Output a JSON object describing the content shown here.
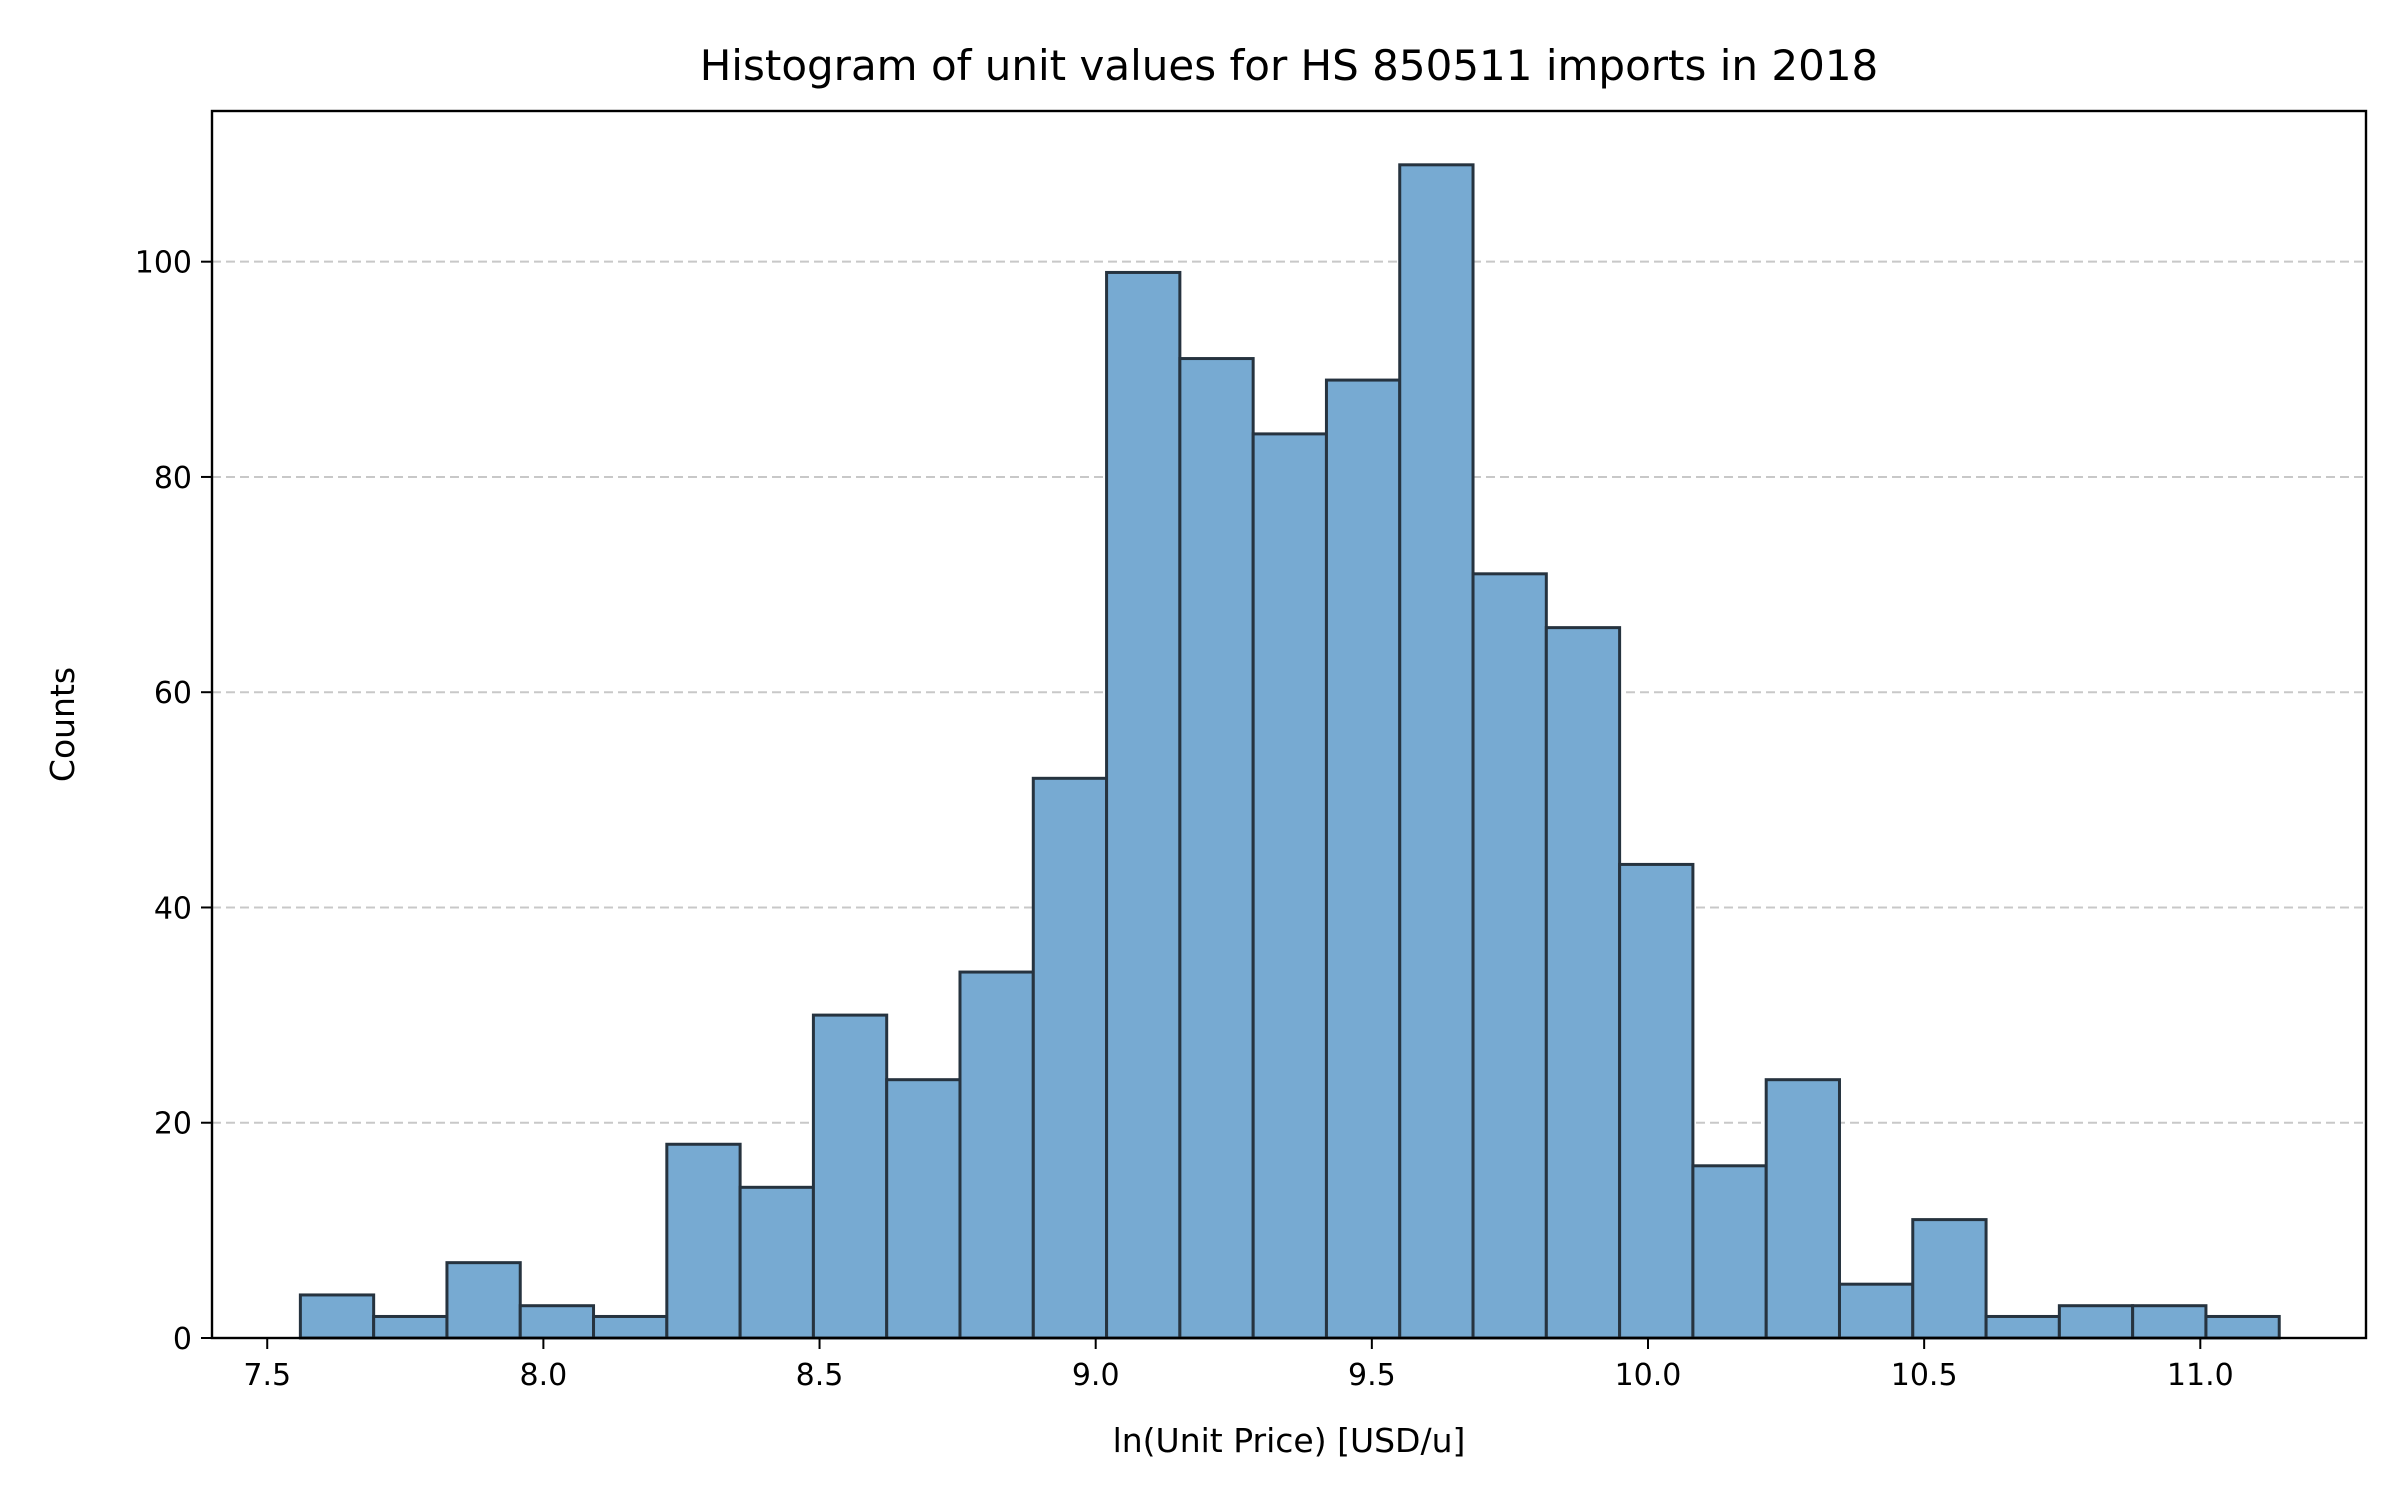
{
  "chart_data": {
    "type": "bar",
    "title": "Histogram of unit values for HS 850511 imports in 2018",
    "xlabel": "ln(Unit Price) [USD/u]",
    "ylabel": "Counts",
    "xlim": [
      7.4,
      11.3
    ],
    "ylim": [
      0,
      114
    ],
    "x_ticks": [
      "7.5",
      "8.0",
      "8.5",
      "9.0",
      "9.5",
      "10.0",
      "10.5",
      "11.0"
    ],
    "y_ticks": [
      "0",
      "20",
      "40",
      "60",
      "80",
      "100"
    ],
    "grid": {
      "axis": "y",
      "style": "dashed"
    },
    "bin_start": 7.56,
    "bin_width": 0.1327,
    "values": [
      4,
      2,
      7,
      3,
      2,
      18,
      14,
      30,
      24,
      34,
      52,
      99,
      91,
      84,
      89,
      109,
      71,
      66,
      44,
      16,
      24,
      5,
      11,
      2,
      3,
      3,
      2
    ],
    "colors": {
      "bar_fill": "#77aad2",
      "bar_edge": "#26333f",
      "grid": "#c8c8c8",
      "axis": "#000000"
    }
  }
}
